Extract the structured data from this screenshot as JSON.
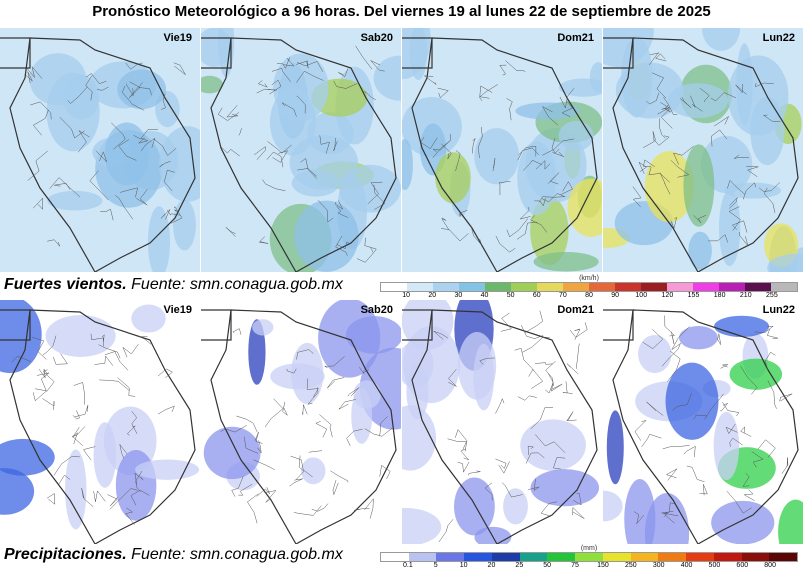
{
  "header": {
    "title": "Pronóstico Meteorológico a 96 horas. Del viernes 19 al lunes 22 de septiembre de 2025"
  },
  "wind": {
    "panels": [
      "Vie19",
      "Sab20",
      "Dom21",
      "Lun22"
    ],
    "caption": {
      "label": "Fuertes vientos.",
      "source": "Fuente: smn.conagua.gob.mx"
    },
    "legend": {
      "unit": "(km/h)",
      "ticks": [
        10,
        20,
        30,
        40,
        50,
        60,
        70,
        80,
        90,
        100,
        120,
        155,
        180,
        210,
        255
      ],
      "colors": [
        "#ffffff",
        "#d4e9f7",
        "#a9d3f0",
        "#82c3e6",
        "#6ab86a",
        "#9fcf55",
        "#e4d95a",
        "#f0a640",
        "#e5683a",
        "#c9352a",
        "#9b1f22",
        "#f59ad6",
        "#ef3ee6",
        "#b91eb5",
        "#5c0f4f",
        "#b8b8b8"
      ]
    }
  },
  "precipitation": {
    "panels": [
      "Vie19",
      "Sab20",
      "Dom21",
      "Lun22"
    ],
    "caption": {
      "label": "Precipitaciones.",
      "source": "Fuente: smn.conagua.gob.mx"
    },
    "legend": {
      "unit": "(mm)",
      "ticks": [
        0.1,
        5,
        10,
        20,
        25,
        50,
        75,
        150,
        250,
        300,
        400,
        500,
        600,
        800
      ],
      "colors": [
        "#ffffff",
        "#b9c3f2",
        "#6a77e6",
        "#2656e0",
        "#1e3ca8",
        "#17a08a",
        "#22c43a",
        "#8fe03a",
        "#e6e32a",
        "#f5b41e",
        "#f07a14",
        "#e63c14",
        "#c01a10",
        "#8a0e0a",
        "#5a0606"
      ]
    }
  }
}
